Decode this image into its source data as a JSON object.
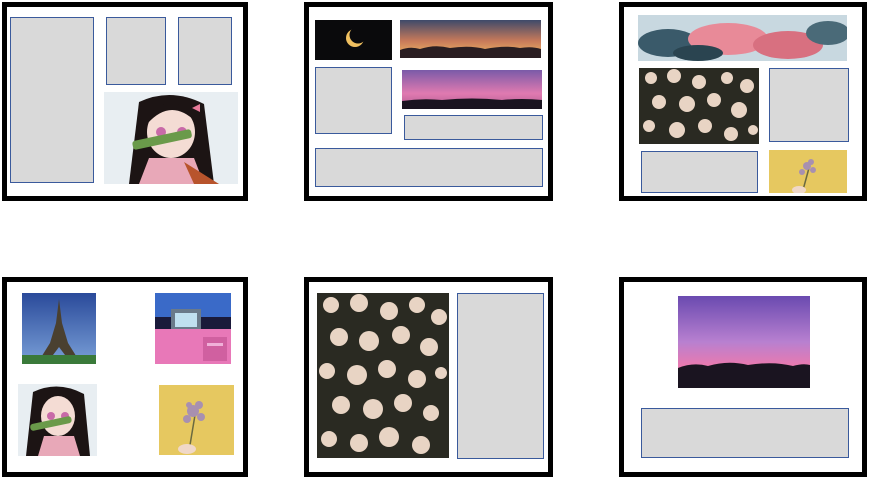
{
  "layouts": [
    {
      "id": "layout-1",
      "images": [
        "anime-girl-bamboo"
      ],
      "empty_slots": 3
    },
    {
      "id": "layout-2",
      "images": [
        "crescent-moon-night",
        "sunset-treeline",
        "pink-purple-sky"
      ],
      "empty_slots": 3
    },
    {
      "id": "layout-3",
      "images": [
        "pink-blossoms-sky",
        "white-roses",
        "lilac-sprig-yellow"
      ],
      "empty_slots": 2
    },
    {
      "id": "layout-4",
      "images": [
        "eiffel-tower",
        "retro-tv-desk",
        "anime-girl-bamboo",
        "lilac-sprig-yellow"
      ],
      "empty_slots": 0
    },
    {
      "id": "layout-5",
      "images": [
        "white-roses"
      ],
      "empty_slots": 1
    },
    {
      "id": "layout-6",
      "images": [
        "pink-purple-sky"
      ],
      "empty_slots": 1
    }
  ],
  "colors": {
    "frame_border": "#000000",
    "slot_fill": "#d9d9d9",
    "slot_border": "#3a5a9c"
  }
}
